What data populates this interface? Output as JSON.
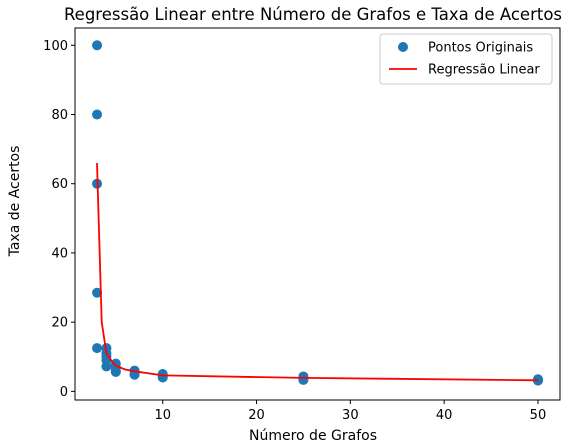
{
  "chart_data": {
    "type": "scatter",
    "title": "Regressão Linear entre Número de Grafos e Taxa de Acertos",
    "xlabel": "Número de Grafos",
    "ylabel": "Taxa de Acertos",
    "xlim": [
      0.65,
      52.35
    ],
    "ylim": [
      -2.5,
      105
    ],
    "x_ticks": [
      10,
      20,
      30,
      40,
      50
    ],
    "x_tick_labels": [
      "10",
      "20",
      "30",
      "40",
      "50"
    ],
    "y_ticks": [
      0,
      20,
      40,
      60,
      80,
      100
    ],
    "y_tick_labels": [
      "0",
      "20",
      "40",
      "60",
      "80",
      "100"
    ],
    "grid": false,
    "legend_position": "top-right",
    "series": [
      {
        "name": "Pontos Originais",
        "kind": "scatter",
        "color": "#1f77b4",
        "points": [
          [
            3,
            100
          ],
          [
            3,
            80
          ],
          [
            3,
            60
          ],
          [
            3,
            28.5
          ],
          [
            3,
            12.5
          ],
          [
            4,
            12.5
          ],
          [
            4,
            11
          ],
          [
            4,
            10
          ],
          [
            4,
            9
          ],
          [
            4,
            7.2
          ],
          [
            5,
            8
          ],
          [
            5,
            7
          ],
          [
            5,
            6
          ],
          [
            5,
            5.6
          ],
          [
            7,
            6
          ],
          [
            7,
            5
          ],
          [
            7,
            4.8
          ],
          [
            10,
            5
          ],
          [
            10,
            4.3
          ],
          [
            10,
            4
          ],
          [
            25,
            4.3
          ],
          [
            25,
            3.8
          ],
          [
            25,
            3.3
          ],
          [
            50,
            3.5
          ],
          [
            50,
            3.2
          ],
          [
            50,
            3.1
          ]
        ]
      },
      {
        "name": "Regressão Linear",
        "kind": "line",
        "color": "#ff0000",
        "points": [
          [
            3,
            66
          ],
          [
            3.5,
            20
          ],
          [
            4,
            11
          ],
          [
            4.5,
            9
          ],
          [
            5,
            7.4
          ],
          [
            6,
            6.3
          ],
          [
            7,
            5.8
          ],
          [
            10,
            4.6
          ],
          [
            25,
            3.9
          ],
          [
            50,
            3.2
          ]
        ]
      }
    ]
  }
}
